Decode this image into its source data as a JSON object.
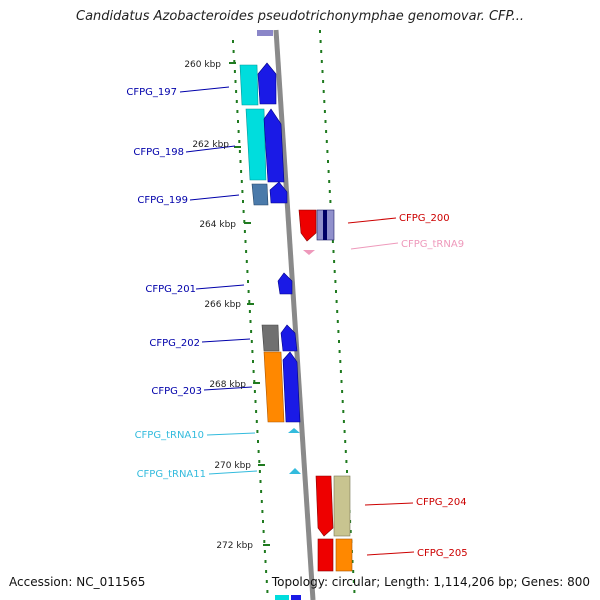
{
  "header": {
    "title": "Candidatus Azobacteroides pseudotrichonymphae genomovar. CFP..."
  },
  "footer": {
    "accession": "Accession: NC_011565",
    "stats": "Topology: circular; Length: 1,114,206 bp; Genes: 800"
  },
  "colors": {
    "backbone": "#8a8a8a",
    "dots": "#1f7a1f",
    "left_label": "#0000aa",
    "right_label": "#cc0000",
    "trna_left": "#33bbdd",
    "trna_right": "#ee99bb"
  },
  "scale_labels": [
    "260 kbp",
    "262 kbp",
    "264 kbp",
    "266 kbp",
    "268 kbp",
    "270 kbp",
    "272 kbp"
  ],
  "genes_left": [
    "CFPG_197",
    "CFPG_198",
    "CFPG_199",
    "CFPG_201",
    "CFPG_202",
    "CFPG_203"
  ],
  "trna_left": [
    "CFPG_tRNA10",
    "CFPG_tRNA11"
  ],
  "genes_right": [
    "CFPG_200",
    "CFPG_204",
    "CFPG_205"
  ],
  "trna_right": [
    "CFPG_tRNA9"
  ]
}
